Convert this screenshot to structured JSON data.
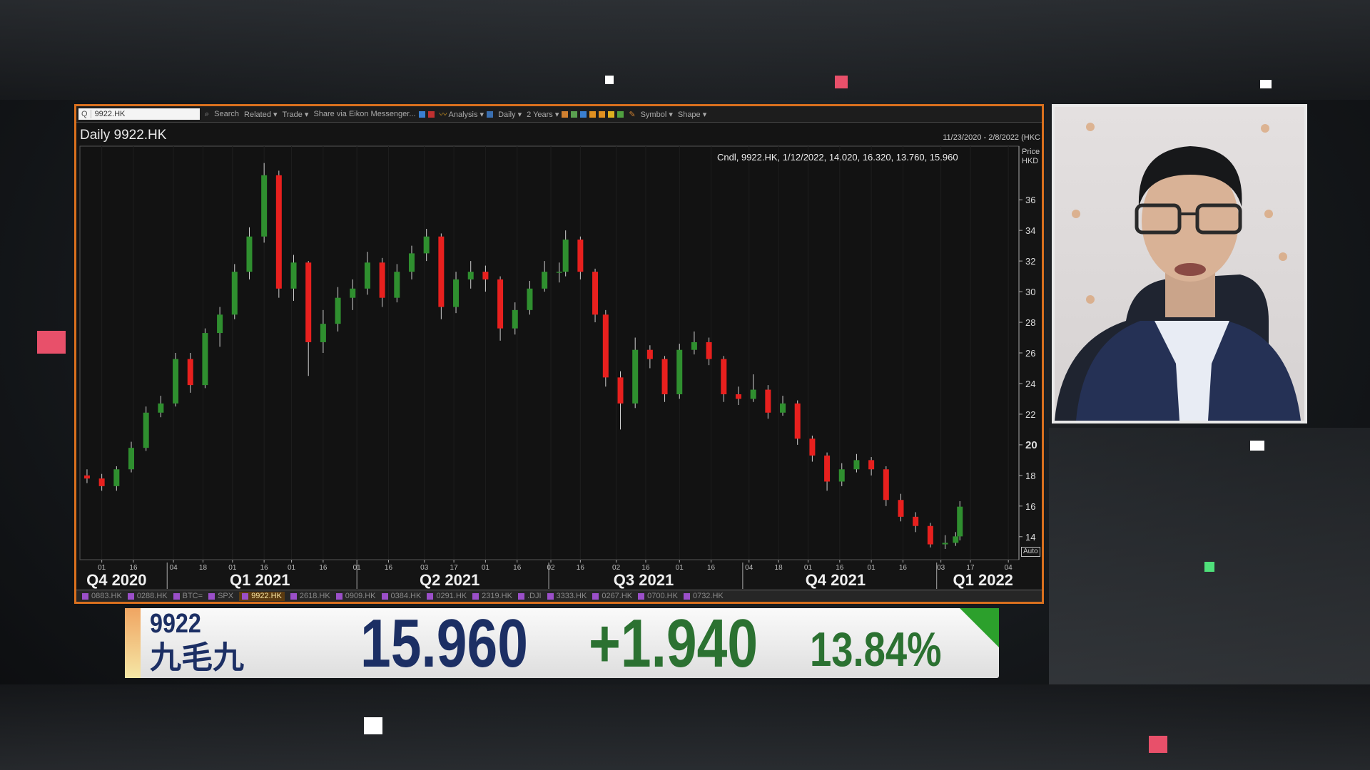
{
  "toolbar": {
    "ric_prefix": "Q",
    "ric_value": "9922.HK",
    "items": [
      "Search",
      "Related ▾",
      "Trade ▾",
      "Share via Eikon Messenger...",
      "Analysis ▾",
      "Daily ▾",
      "2 Years ▾",
      "Symbol ▾",
      "Shape ▾"
    ]
  },
  "chart": {
    "title": "Daily 9922.HK",
    "date_range": "11/23/2020 - 2/8/2022 (HKC",
    "readout": "Cndl, 9922.HK, 1/12/2022, 14.020, 16.320, 13.760, 15.960",
    "axis_unit_1": "Price",
    "axis_unit_2": "HKD",
    "auto_label": "Auto"
  },
  "chart_data": {
    "type": "candlestick",
    "title": "Daily 9922.HK",
    "ylabel": "Price HKD",
    "ylim": [
      12.5,
      39.5
    ],
    "yticks": [
      14,
      16,
      18,
      20,
      22,
      24,
      26,
      28,
      30,
      32,
      34,
      36
    ],
    "xlim": [
      "2020-11-23",
      "2022-02-08"
    ],
    "colors": {
      "up": "#2f8f2f",
      "down": "#e8201e",
      "wick": "#cfcfcf"
    },
    "x_ticks": [
      {
        "date": "2020-12-01",
        "label": "01"
      },
      {
        "date": "2020-12-16",
        "label": "16"
      },
      {
        "date": "2021-01-04",
        "label": "04"
      },
      {
        "date": "2021-01-18",
        "label": "18"
      },
      {
        "date": "2021-02-01",
        "label": "01"
      },
      {
        "date": "2021-02-16",
        "label": "16"
      },
      {
        "date": "2021-03-01",
        "label": "01"
      },
      {
        "date": "2021-03-16",
        "label": "16"
      },
      {
        "date": "2021-04-01",
        "label": "01"
      },
      {
        "date": "2021-04-16",
        "label": "16"
      },
      {
        "date": "2021-05-03",
        "label": "03"
      },
      {
        "date": "2021-05-17",
        "label": "17"
      },
      {
        "date": "2021-06-01",
        "label": "01"
      },
      {
        "date": "2021-06-16",
        "label": "16"
      },
      {
        "date": "2021-07-02",
        "label": "02"
      },
      {
        "date": "2021-07-16",
        "label": "16"
      },
      {
        "date": "2021-08-02",
        "label": "02"
      },
      {
        "date": "2021-08-16",
        "label": "16"
      },
      {
        "date": "2021-09-01",
        "label": "01"
      },
      {
        "date": "2021-09-16",
        "label": "16"
      },
      {
        "date": "2021-10-04",
        "label": "04"
      },
      {
        "date": "2021-10-18",
        "label": "18"
      },
      {
        "date": "2021-11-01",
        "label": "01"
      },
      {
        "date": "2021-11-16",
        "label": "16"
      },
      {
        "date": "2021-12-01",
        "label": "01"
      },
      {
        "date": "2021-12-16",
        "label": "16"
      },
      {
        "date": "2022-01-03",
        "label": "03"
      },
      {
        "date": "2022-01-17",
        "label": "17"
      },
      {
        "date": "2022-02-04",
        "label": "04"
      }
    ],
    "quarters": [
      {
        "label": "Q4 2020",
        "center": "2020-12-08",
        "start": null
      },
      {
        "label": "Q1 2021",
        "center": "2021-02-14",
        "start": "2021-01-01"
      },
      {
        "label": "Q2 2021",
        "center": "2021-05-15",
        "start": "2021-04-01"
      },
      {
        "label": "Q3 2021",
        "center": "2021-08-15",
        "start": "2021-07-01"
      },
      {
        "label": "Q4 2021",
        "center": "2021-11-14",
        "start": "2021-10-01"
      },
      {
        "label": "Q1 2022",
        "center": "2022-01-23",
        "start": "2022-01-01"
      }
    ],
    "candles": [
      {
        "d": "2020-11-24",
        "o": 18.0,
        "h": 18.4,
        "l": 17.5,
        "c": 17.8
      },
      {
        "d": "2020-12-01",
        "o": 17.8,
        "h": 18.1,
        "l": 17.0,
        "c": 17.3
      },
      {
        "d": "2020-12-08",
        "o": 17.3,
        "h": 18.6,
        "l": 17.0,
        "c": 18.4
      },
      {
        "d": "2020-12-15",
        "o": 18.4,
        "h": 20.2,
        "l": 18.2,
        "c": 19.8
      },
      {
        "d": "2020-12-22",
        "o": 19.8,
        "h": 22.5,
        "l": 19.6,
        "c": 22.1
      },
      {
        "d": "2020-12-29",
        "o": 22.1,
        "h": 23.2,
        "l": 21.8,
        "c": 22.7
      },
      {
        "d": "2021-01-05",
        "o": 22.7,
        "h": 26.0,
        "l": 22.5,
        "c": 25.6
      },
      {
        "d": "2021-01-12",
        "o": 25.6,
        "h": 26.0,
        "l": 23.4,
        "c": 23.9
      },
      {
        "d": "2021-01-19",
        "o": 23.9,
        "h": 27.6,
        "l": 23.7,
        "c": 27.3
      },
      {
        "d": "2021-01-26",
        "o": 27.3,
        "h": 29.0,
        "l": 26.4,
        "c": 28.5
      },
      {
        "d": "2021-02-02",
        "o": 28.5,
        "h": 31.8,
        "l": 28.2,
        "c": 31.3
      },
      {
        "d": "2021-02-09",
        "o": 31.3,
        "h": 34.2,
        "l": 30.8,
        "c": 33.6
      },
      {
        "d": "2021-02-16",
        "o": 33.6,
        "h": 38.4,
        "l": 33.2,
        "c": 37.6
      },
      {
        "d": "2021-02-23",
        "o": 37.6,
        "h": 37.9,
        "l": 29.6,
        "c": 30.2
      },
      {
        "d": "2021-03-02",
        "o": 30.2,
        "h": 32.4,
        "l": 29.4,
        "c": 31.9
      },
      {
        "d": "2021-03-09",
        "o": 31.9,
        "h": 32.0,
        "l": 24.5,
        "c": 26.7
      },
      {
        "d": "2021-03-16",
        "o": 26.7,
        "h": 28.8,
        "l": 26.0,
        "c": 27.9
      },
      {
        "d": "2021-03-23",
        "o": 27.9,
        "h": 30.3,
        "l": 27.4,
        "c": 29.6
      },
      {
        "d": "2021-03-30",
        "o": 29.6,
        "h": 30.8,
        "l": 28.8,
        "c": 30.2
      },
      {
        "d": "2021-04-06",
        "o": 30.2,
        "h": 32.6,
        "l": 29.8,
        "c": 31.9
      },
      {
        "d": "2021-04-13",
        "o": 31.9,
        "h": 32.2,
        "l": 29.0,
        "c": 29.6
      },
      {
        "d": "2021-04-20",
        "o": 29.6,
        "h": 31.8,
        "l": 29.3,
        "c": 31.3
      },
      {
        "d": "2021-04-27",
        "o": 31.3,
        "h": 33.0,
        "l": 30.8,
        "c": 32.5
      },
      {
        "d": "2021-05-04",
        "o": 32.5,
        "h": 34.1,
        "l": 32.0,
        "c": 33.6
      },
      {
        "d": "2021-05-11",
        "o": 33.6,
        "h": 33.8,
        "l": 28.2,
        "c": 29.0
      },
      {
        "d": "2021-05-18",
        "o": 29.0,
        "h": 31.3,
        "l": 28.6,
        "c": 30.8
      },
      {
        "d": "2021-05-25",
        "o": 30.8,
        "h": 32.0,
        "l": 30.2,
        "c": 31.3
      },
      {
        "d": "2021-06-01",
        "o": 31.3,
        "h": 31.7,
        "l": 30.0,
        "c": 30.8
      },
      {
        "d": "2021-06-08",
        "o": 30.8,
        "h": 31.0,
        "l": 26.8,
        "c": 27.6
      },
      {
        "d": "2021-06-15",
        "o": 27.6,
        "h": 29.3,
        "l": 27.2,
        "c": 28.8
      },
      {
        "d": "2021-06-22",
        "o": 28.8,
        "h": 30.7,
        "l": 28.5,
        "c": 30.2
      },
      {
        "d": "2021-06-29",
        "o": 30.2,
        "h": 32.0,
        "l": 30.0,
        "c": 31.3
      },
      {
        "d": "2021-07-06",
        "o": 31.3,
        "h": 31.9,
        "l": 30.6,
        "c": 31.3
      },
      {
        "d": "2021-07-09",
        "o": 31.3,
        "h": 34.0,
        "l": 31.0,
        "c": 33.4
      },
      {
        "d": "2021-07-16",
        "o": 33.4,
        "h": 33.6,
        "l": 30.8,
        "c": 31.3
      },
      {
        "d": "2021-07-23",
        "o": 31.3,
        "h": 31.5,
        "l": 28.0,
        "c": 28.5
      },
      {
        "d": "2021-07-28",
        "o": 28.5,
        "h": 28.8,
        "l": 23.8,
        "c": 24.4
      },
      {
        "d": "2021-08-04",
        "o": 24.4,
        "h": 24.8,
        "l": 21.0,
        "c": 22.7
      },
      {
        "d": "2021-08-11",
        "o": 22.7,
        "h": 27.0,
        "l": 22.4,
        "c": 26.2
      },
      {
        "d": "2021-08-18",
        "o": 26.2,
        "h": 26.5,
        "l": 25.0,
        "c": 25.6
      },
      {
        "d": "2021-08-25",
        "o": 25.6,
        "h": 25.8,
        "l": 22.8,
        "c": 23.3
      },
      {
        "d": "2021-09-01",
        "o": 23.3,
        "h": 26.6,
        "l": 23.0,
        "c": 26.2
      },
      {
        "d": "2021-09-08",
        "o": 26.2,
        "h": 27.4,
        "l": 25.9,
        "c": 26.7
      },
      {
        "d": "2021-09-15",
        "o": 26.7,
        "h": 27.0,
        "l": 25.2,
        "c": 25.6
      },
      {
        "d": "2021-09-22",
        "o": 25.6,
        "h": 25.8,
        "l": 22.8,
        "c": 23.3
      },
      {
        "d": "2021-09-29",
        "o": 23.3,
        "h": 23.8,
        "l": 22.6,
        "c": 23.0
      },
      {
        "d": "2021-10-06",
        "o": 23.0,
        "h": 24.6,
        "l": 22.8,
        "c": 23.6
      },
      {
        "d": "2021-10-13",
        "o": 23.6,
        "h": 23.9,
        "l": 21.7,
        "c": 22.1
      },
      {
        "d": "2021-10-20",
        "o": 22.1,
        "h": 23.2,
        "l": 21.9,
        "c": 22.7
      },
      {
        "d": "2021-10-27",
        "o": 22.7,
        "h": 22.9,
        "l": 20.0,
        "c": 20.4
      },
      {
        "d": "2021-11-03",
        "o": 20.4,
        "h": 20.6,
        "l": 18.9,
        "c": 19.3
      },
      {
        "d": "2021-11-10",
        "o": 19.3,
        "h": 19.5,
        "l": 17.0,
        "c": 17.6
      },
      {
        "d": "2021-11-17",
        "o": 17.6,
        "h": 18.8,
        "l": 17.3,
        "c": 18.4
      },
      {
        "d": "2021-11-24",
        "o": 18.4,
        "h": 19.4,
        "l": 18.2,
        "c": 19.0
      },
      {
        "d": "2021-12-01",
        "o": 19.0,
        "h": 19.2,
        "l": 18.0,
        "c": 18.4
      },
      {
        "d": "2021-12-08",
        "o": 18.4,
        "h": 18.6,
        "l": 16.0,
        "c": 16.4
      },
      {
        "d": "2021-12-15",
        "o": 16.4,
        "h": 16.8,
        "l": 15.0,
        "c": 15.3
      },
      {
        "d": "2021-12-22",
        "o": 15.3,
        "h": 15.6,
        "l": 14.3,
        "c": 14.7
      },
      {
        "d": "2021-12-29",
        "o": 14.7,
        "h": 14.9,
        "l": 13.3,
        "c": 13.5
      },
      {
        "d": "2022-01-05",
        "o": 13.5,
        "h": 14.1,
        "l": 13.2,
        "c": 13.6
      },
      {
        "d": "2022-01-10",
        "o": 13.6,
        "h": 14.3,
        "l": 13.4,
        "c": 14.02
      },
      {
        "d": "2022-01-12",
        "o": 14.02,
        "h": 16.32,
        "l": 13.76,
        "c": 15.96
      }
    ]
  },
  "ticker_bar": [
    "0883.HK",
    "0288.HK",
    "BTC=",
    "SPX",
    "9922.HK",
    "2618.HK",
    "0909.HK",
    "0384.HK",
    "0291.HK",
    "2319.HK",
    ".DJI",
    "3333.HK",
    "0267.HK",
    "0700.HK",
    "0732.HK"
  ],
  "ticker_active": "9922.HK",
  "quote": {
    "code": "9922",
    "name": "九毛九",
    "price": "15.960",
    "change": "+1.940",
    "change_pct": "13.84%",
    "direction": "up",
    "up_color": "#2ca02c",
    "price_color": "#1c2f64"
  }
}
